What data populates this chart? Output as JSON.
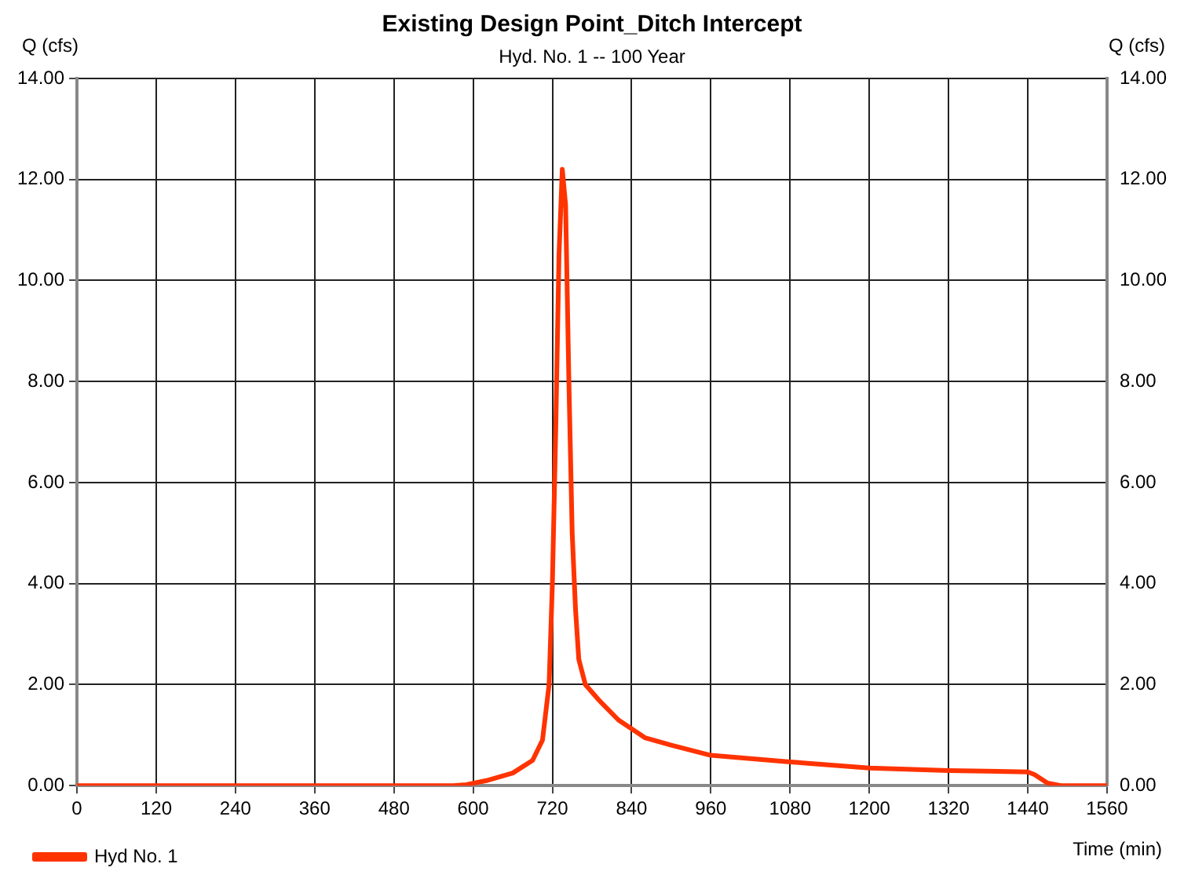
{
  "chart_data": {
    "type": "line",
    "title": "Existing Design Point_Ditch Intercept",
    "subtitle": "Hyd. No. 1 -- 100 Year",
    "xlabel": "Time (min)",
    "ylabel": "Q (cfs)",
    "y2label": "Q (cfs)",
    "series": [
      {
        "name": "Hyd No. 1",
        "color": "#ff3300",
        "x": [
          0,
          120,
          240,
          360,
          480,
          570,
          590,
          620,
          660,
          690,
          705,
          715,
          720,
          725,
          730,
          735,
          740,
          745,
          750,
          755,
          760,
          770,
          790,
          820,
          860,
          900,
          960,
          1080,
          1200,
          1320,
          1440,
          1450,
          1470,
          1490,
          1560
        ],
        "values": [
          0,
          0,
          0,
          0,
          0,
          0,
          0.02,
          0.1,
          0.25,
          0.5,
          0.9,
          2.0,
          4.0,
          7.0,
          10.5,
          12.2,
          11.5,
          8.0,
          5.0,
          3.5,
          2.5,
          2.0,
          1.7,
          1.3,
          0.95,
          0.8,
          0.6,
          0.47,
          0.35,
          0.3,
          0.27,
          0.22,
          0.05,
          0,
          0
        ]
      }
    ],
    "xlim": [
      0,
      1560
    ],
    "xticks": [
      0,
      120,
      240,
      360,
      480,
      600,
      720,
      840,
      960,
      1080,
      1200,
      1320,
      1440,
      1560
    ],
    "ylim": [
      0,
      14
    ],
    "yticks": [
      {
        "value": 0,
        "label": "0.00"
      },
      {
        "value": 2,
        "label": "2.00"
      },
      {
        "value": 4,
        "label": "4.00"
      },
      {
        "value": 6,
        "label": "6.00"
      },
      {
        "value": 8,
        "label": "8.00"
      },
      {
        "value": 10,
        "label": "10.00"
      },
      {
        "value": 12,
        "label": "12.00"
      },
      {
        "value": 14,
        "label": "14.00"
      }
    ],
    "y2lim": [
      0,
      14
    ],
    "y2ticks": [
      {
        "value": 0,
        "label": "0.00"
      },
      {
        "value": 2,
        "label": "2.00"
      },
      {
        "value": 4,
        "label": "4.00"
      },
      {
        "value": 6,
        "label": "6.00"
      },
      {
        "value": 8,
        "label": "8.00"
      },
      {
        "value": 10,
        "label": "10.00"
      },
      {
        "value": 12,
        "label": "12.00"
      },
      {
        "value": 14,
        "label": "14.00"
      }
    ],
    "grid": true,
    "legend": "bottom left",
    "marker": "none",
    "line_style": "solid"
  }
}
